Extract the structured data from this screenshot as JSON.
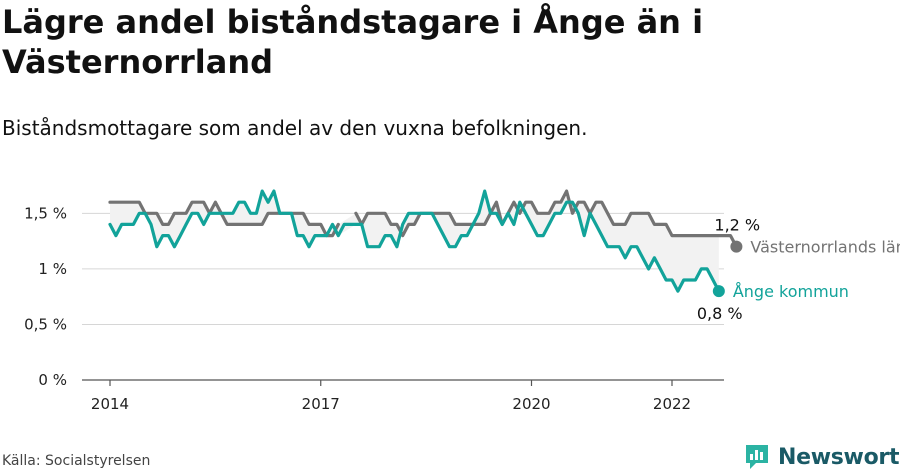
{
  "title": "Lägre andel biståndstagare i Ånge än i Västernorrland",
  "subtitle": "Biståndsmottagare som andel av den vuxna befolkningen.",
  "source": "Källa: Socialstyrelsen",
  "brand": "Newsworthy",
  "colors": {
    "lan": "#737373",
    "kommun": "#12a39a",
    "band": "#f2f2f2",
    "grid": "#d6d6d6"
  },
  "chart_data": {
    "type": "line",
    "xlim": [
      2014,
      2022.6
    ],
    "ylim": [
      0,
      1.8
    ],
    "x_ticks": [
      {
        "value": 2014,
        "label": "2014"
      },
      {
        "value": 2017,
        "label": "2017"
      },
      {
        "value": 2020,
        "label": "2020"
      },
      {
        "value": 2022,
        "label": "2022"
      }
    ],
    "y_ticks": [
      {
        "value": 0,
        "label": "0 %"
      },
      {
        "value": 0.5,
        "label": "0,5 %"
      },
      {
        "value": 1,
        "label": "1 %"
      },
      {
        "value": 1.5,
        "label": "1,5 %"
      }
    ],
    "x_start": 2014,
    "x_step_months": 1,
    "series": [
      {
        "name": "Västernorrlands län",
        "end_label": "1,2 %",
        "values": [
          1.6,
          1.6,
          1.6,
          1.6,
          1.6,
          1.6,
          1.5,
          1.5,
          1.5,
          1.4,
          1.4,
          1.5,
          1.5,
          1.5,
          1.6,
          1.6,
          1.6,
          1.5,
          1.6,
          1.5,
          1.4,
          1.4,
          1.4,
          1.4,
          1.4,
          1.4,
          1.4,
          1.5,
          1.5,
          1.5,
          1.5,
          1.5,
          1.5,
          1.5,
          1.4,
          1.4,
          1.4,
          1.3,
          1.3,
          1.4,
          null,
          null,
          1.5,
          1.4,
          1.5,
          1.5,
          1.5,
          1.5,
          1.4,
          1.4,
          1.3,
          1.4,
          1.4,
          1.5,
          1.5,
          1.5,
          1.5,
          1.5,
          1.5,
          1.4,
          1.4,
          1.4,
          1.4,
          1.4,
          1.4,
          1.5,
          1.6,
          1.4,
          1.5,
          1.6,
          1.5,
          1.6,
          1.6,
          1.5,
          1.5,
          1.5,
          1.6,
          1.6,
          1.7,
          1.5,
          1.6,
          1.6,
          1.5,
          1.6,
          1.6,
          1.5,
          1.4,
          1.4,
          1.4,
          1.5,
          1.5,
          1.5,
          1.5,
          1.4,
          1.4,
          1.4,
          1.3,
          1.3,
          1.3,
          1.3,
          1.3,
          1.3,
          1.3,
          1.3,
          1.3,
          1.3,
          1.3,
          1.2
        ]
      },
      {
        "name": "Ånge kommun",
        "end_label": "0,8 %",
        "values": [
          1.4,
          1.3,
          1.4,
          1.4,
          1.4,
          1.5,
          1.5,
          1.4,
          1.2,
          1.3,
          1.3,
          1.2,
          1.3,
          1.4,
          1.5,
          1.5,
          1.4,
          1.5,
          1.5,
          1.5,
          1.5,
          1.5,
          1.6,
          1.6,
          1.5,
          1.5,
          1.7,
          1.6,
          1.7,
          1.5,
          1.5,
          1.5,
          1.3,
          1.3,
          1.2,
          1.3,
          1.3,
          1.3,
          1.4,
          1.3,
          1.4,
          1.4,
          1.4,
          1.4,
          1.2,
          1.2,
          1.2,
          1.3,
          1.3,
          1.2,
          1.4,
          1.5,
          1.5,
          1.5,
          1.5,
          1.5,
          1.4,
          1.3,
          1.2,
          1.2,
          1.3,
          1.3,
          1.4,
          1.5,
          1.7,
          1.5,
          1.5,
          1.4,
          1.5,
          1.4,
          1.6,
          1.5,
          1.4,
          1.3,
          1.3,
          1.4,
          1.5,
          1.5,
          1.6,
          1.6,
          1.5,
          1.3,
          1.5,
          1.4,
          1.3,
          1.2,
          1.2,
          1.2,
          1.1,
          1.2,
          1.2,
          1.1,
          1.0,
          1.1,
          1.0,
          0.9,
          0.9,
          0.8,
          0.9,
          0.9,
          0.9,
          1.0,
          1.0,
          0.9,
          0.8
        ]
      }
    ]
  }
}
